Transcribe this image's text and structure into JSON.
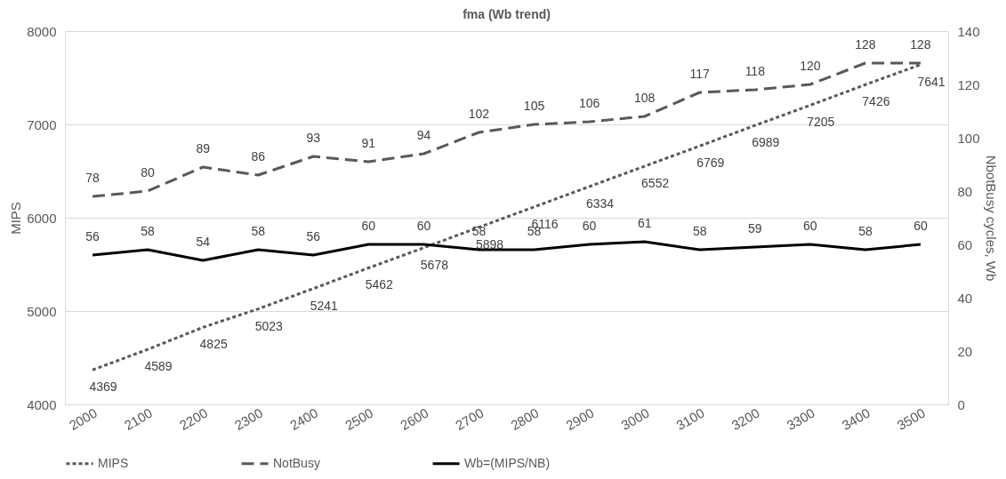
{
  "chart_data": {
    "type": "line",
    "title": "fma (Wb trend)",
    "ylabel": "MIPS",
    "y2label": "NbotBusy cycles, Wb",
    "categories": [
      "2000",
      "2100",
      "2200",
      "2300",
      "2400",
      "2500",
      "2600",
      "2700",
      "2800",
      "2900",
      "3000",
      "3100",
      "3200",
      "3300",
      "3400",
      "3500"
    ],
    "series": [
      {
        "name": "MIPS",
        "color": "#595959",
        "line_style": "dotted",
        "values": [
          4369,
          4589,
          4825,
          5023,
          5241,
          5462,
          5678,
          5898,
          6116,
          6334,
          6552,
          6769,
          6989,
          7205,
          7426,
          7641
        ]
      },
      {
        "name": "NotBusy",
        "color": "#595959",
        "line_style": "dashed",
        "axis": "y2",
        "values": [
          78,
          80,
          89,
          86,
          93,
          91,
          94,
          102,
          105,
          106,
          108,
          117,
          118,
          120,
          128,
          128
        ]
      },
      {
        "name": "Wb=(MIPS/NB)",
        "color": "#000000",
        "line_style": "solid",
        "axis": "y2",
        "values": [
          56,
          58,
          54,
          58,
          56,
          60,
          60,
          58,
          58,
          60,
          61,
          58,
          59,
          60,
          58,
          60
        ]
      }
    ],
    "ylim": [
      4000,
      8000
    ],
    "yticks": [
      4000,
      5000,
      6000,
      7000,
      8000
    ],
    "y2lim": [
      0,
      140
    ],
    "y2ticks": [
      0,
      20,
      40,
      60,
      80,
      100,
      120,
      140
    ],
    "grid": "y",
    "legend": "bottom",
    "data_labels": true,
    "marker": "none"
  }
}
